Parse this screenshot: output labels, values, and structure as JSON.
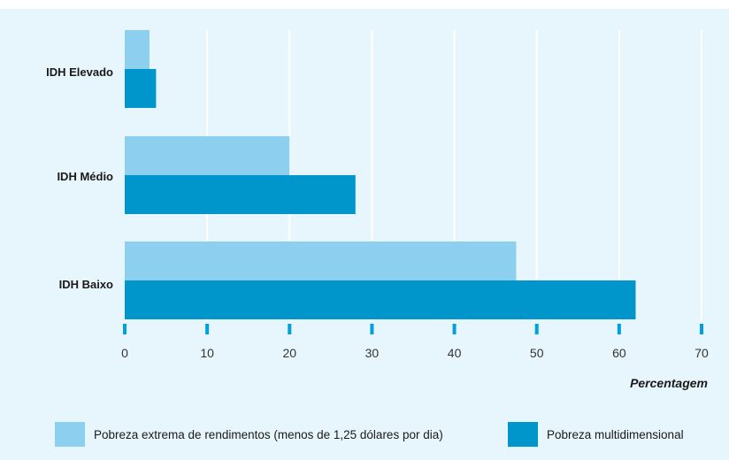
{
  "chart_data": {
    "type": "bar",
    "orientation": "horizontal",
    "categories": [
      "IDH Elevado",
      "IDH Médio",
      "IDH Baixo"
    ],
    "series": [
      {
        "name": "Pobreza extrema de rendimentos (menos de 1,25 dólares por dia)",
        "values": [
          3,
          20,
          47.5
        ],
        "color": "#8dcfee"
      },
      {
        "name": "Pobreza multidimensional",
        "values": [
          3.8,
          28,
          62
        ],
        "color": "#0096cb"
      }
    ],
    "xticks": [
      "0",
      "10",
      "20",
      "30",
      "40",
      "50",
      "60",
      "70"
    ],
    "xlim": [
      0,
      70
    ],
    "xlabel": "Percentagem",
    "grid": true,
    "legend": "bottom",
    "colors": {
      "background": "#e7f5fc",
      "grid": "#ffffff",
      "tick": "#00a0dc"
    }
  }
}
